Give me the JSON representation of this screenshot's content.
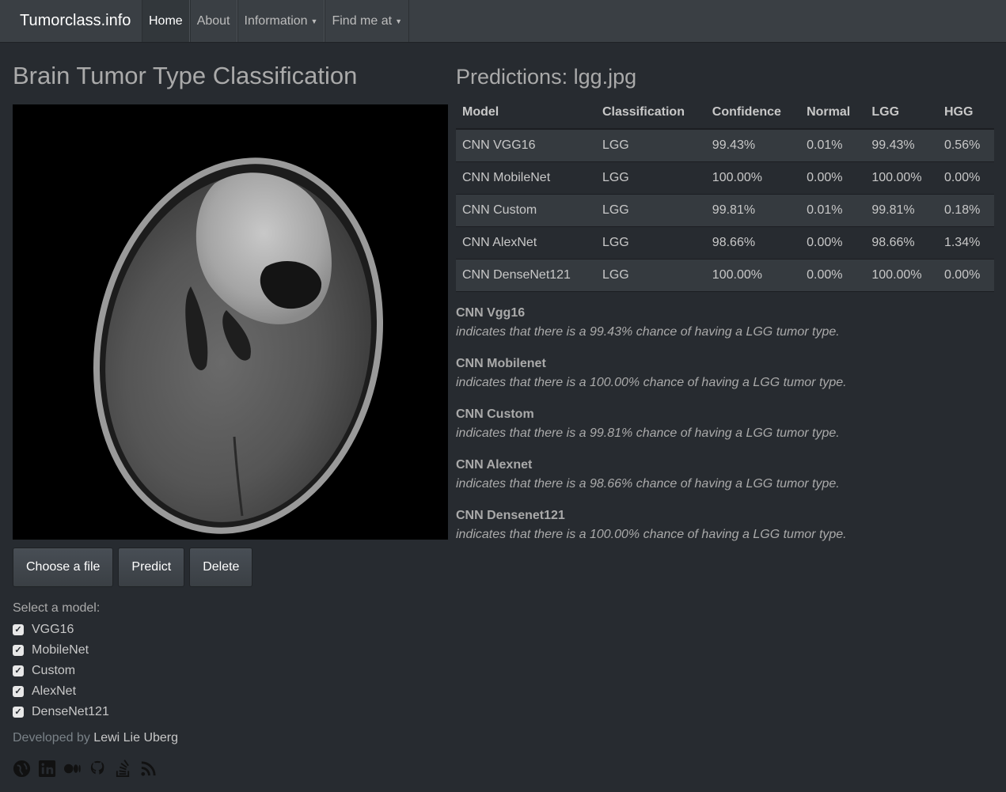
{
  "navbar": {
    "brand": "Tumorclass.info",
    "items": [
      {
        "label": "Home",
        "active": true
      },
      {
        "label": "About"
      },
      {
        "label": "Information",
        "dropdown": true
      },
      {
        "label": "Find me at",
        "dropdown": true
      }
    ]
  },
  "main": {
    "title": "Brain Tumor Type Classification",
    "buttons": {
      "choose": "Choose a file",
      "predict": "Predict",
      "delete": "Delete"
    },
    "model_label": "Select a model:",
    "models": [
      {
        "label": "VGG16",
        "checked": true
      },
      {
        "label": "MobileNet",
        "checked": true
      },
      {
        "label": "Custom",
        "checked": true
      },
      {
        "label": "AlexNet",
        "checked": true
      },
      {
        "label": "DenseNet121",
        "checked": true
      }
    ],
    "footer": {
      "prefix": "Developed by",
      "author": "Lewi Lie Uberg"
    },
    "social_icons": [
      "globe-icon",
      "linkedin-icon",
      "medium-icon",
      "github-icon",
      "stackoverflow-icon",
      "rss-icon"
    ]
  },
  "predictions": {
    "title": "Predictions: lgg.jpg",
    "columns": [
      "Model",
      "Classification",
      "Confidence",
      "Normal",
      "LGG",
      "HGG"
    ],
    "rows": [
      [
        "CNN VGG16",
        "LGG",
        "99.43%",
        "0.01%",
        "99.43%",
        "0.56%"
      ],
      [
        "CNN MobileNet",
        "LGG",
        "100.00%",
        "0.00%",
        "100.00%",
        "0.00%"
      ],
      [
        "CNN Custom",
        "LGG",
        "99.81%",
        "0.01%",
        "99.81%",
        "0.18%"
      ],
      [
        "CNN AlexNet",
        "LGG",
        "98.66%",
        "0.00%",
        "98.66%",
        "1.34%"
      ],
      [
        "CNN DenseNet121",
        "LGG",
        "100.00%",
        "0.00%",
        "100.00%",
        "0.00%"
      ]
    ],
    "results": [
      {
        "name": "CNN Vgg16",
        "text": "indicates that there is a 99.43% chance of having a LGG tumor type."
      },
      {
        "name": "CNN Mobilenet",
        "text": "indicates that there is a 100.00% chance of having a LGG tumor type."
      },
      {
        "name": "CNN Custom",
        "text": "indicates that there is a 99.81% chance of having a LGG tumor type."
      },
      {
        "name": "CNN Alexnet",
        "text": "indicates that there is a 98.66% chance of having a LGG tumor type."
      },
      {
        "name": "CNN Densenet121",
        "text": "indicates that there is a 100.00% chance of having a LGG tumor type."
      }
    ]
  }
}
